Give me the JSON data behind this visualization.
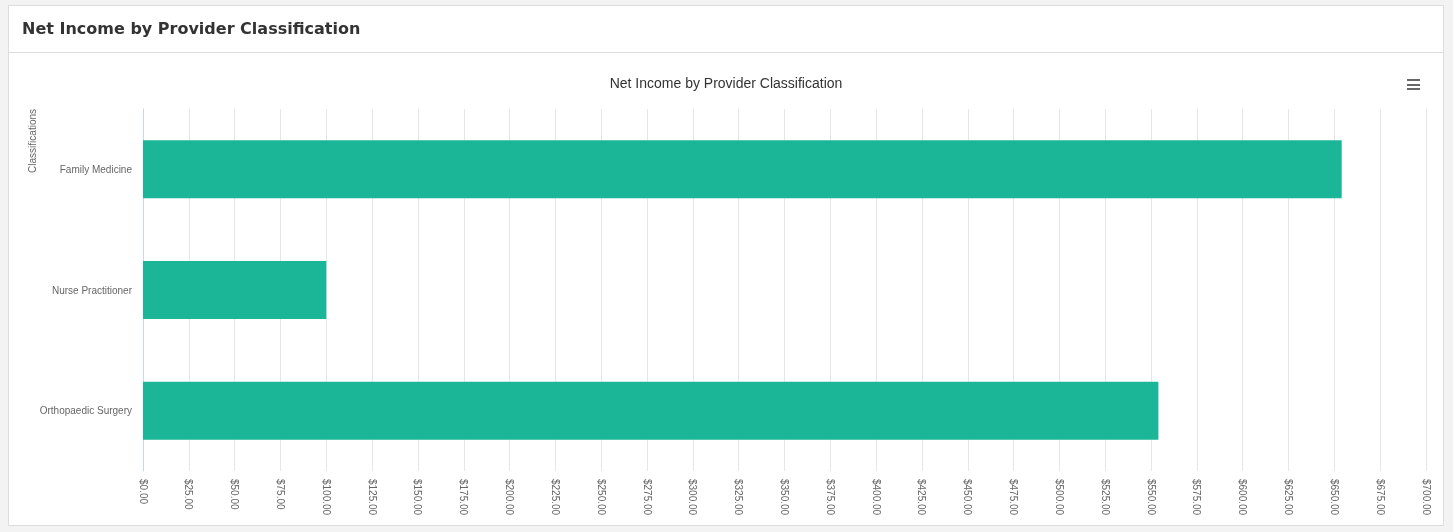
{
  "chart_data": {
    "type": "bar",
    "orientation": "horizontal",
    "title": "Net Income by Provider Classification",
    "subtitle": "Net Income by Provider Classification",
    "ylabel": "Classifications",
    "categories": [
      "Family Medicine",
      "Nurse Practitioner",
      "Orthopaedic Surgery"
    ],
    "values": [
      654,
      100,
      554
    ],
    "color": "#1bb697",
    "xlim": [
      0,
      700
    ],
    "xticks": [
      {
        "value": 0,
        "label": "$0.00"
      },
      {
        "value": 25,
        "label": "$25.00"
      },
      {
        "value": 50,
        "label": "$50.00"
      },
      {
        "value": 75,
        "label": "$75.00"
      },
      {
        "value": 100,
        "label": "$100.00"
      },
      {
        "value": 125,
        "label": "$125.00"
      },
      {
        "value": 150,
        "label": "$150.00"
      },
      {
        "value": 175,
        "label": "$175.00"
      },
      {
        "value": 200,
        "label": "$200.00"
      },
      {
        "value": 225,
        "label": "$225.00"
      },
      {
        "value": 250,
        "label": "$250.00"
      },
      {
        "value": 275,
        "label": "$275.00"
      },
      {
        "value": 300,
        "label": "$300.00"
      },
      {
        "value": 325,
        "label": "$325.00"
      },
      {
        "value": 350,
        "label": "$350.00"
      },
      {
        "value": 375,
        "label": "$375.00"
      },
      {
        "value": 400,
        "label": "$400.00"
      },
      {
        "value": 425,
        "label": "$425.00"
      },
      {
        "value": 450,
        "label": "$450.00"
      },
      {
        "value": 475,
        "label": "$475.00"
      },
      {
        "value": 500,
        "label": "$500.00"
      },
      {
        "value": 525,
        "label": "$525.00"
      },
      {
        "value": 550,
        "label": "$550.00"
      },
      {
        "value": 575,
        "label": "$575.00"
      },
      {
        "value": 600,
        "label": "$600.00"
      },
      {
        "value": 625,
        "label": "$625.00"
      },
      {
        "value": 650,
        "label": "$650.00"
      },
      {
        "value": 675,
        "label": "$675.00"
      },
      {
        "value": 700,
        "label": "$700.00"
      }
    ],
    "grid": "x"
  }
}
